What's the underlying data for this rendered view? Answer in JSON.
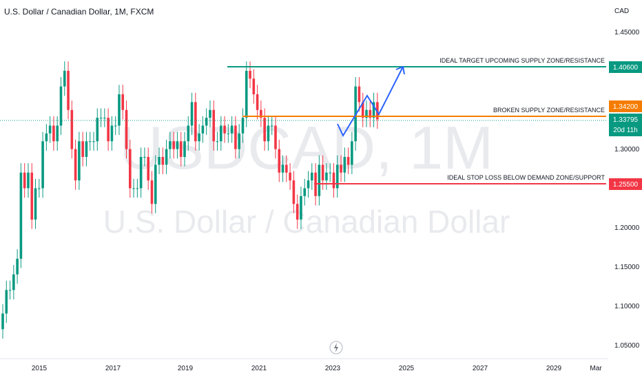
{
  "header": {
    "title": "U.S. Dollar / Canadian Dollar, 1M, FXCM"
  },
  "axis": {
    "currency": "CAD",
    "y_ticks": [
      "1.45000",
      "1.30000",
      "1.20000",
      "1.15000",
      "1.10000",
      "1.05000"
    ],
    "x_ticks": [
      "2015",
      "2017",
      "2019",
      "2021",
      "2023",
      "2025",
      "2027",
      "2029",
      "Mar"
    ]
  },
  "watermark": {
    "symbol": "USDCAD, 1M",
    "name": "U.S. Dollar / Canadian Dollar"
  },
  "annotations": {
    "target_label": "IDEAL TARGET UPCOMING SUPPLY ZONE/RESISTANCE",
    "target_price": "1.40600",
    "broken_label": "BROKEN SUPPLY ZONE/RESISTANCE",
    "broken_price": "1.34200",
    "current_price": "1.33795",
    "countdown": "20d 11h",
    "stop_label": "IDEAL STOP LOSS BELOW DEMAND ZONE/SUPPORT",
    "stop_price": "1.25500"
  },
  "colors": {
    "up": "#089981",
    "down": "#f23645",
    "target": "#089981",
    "broken": "#f57c00",
    "stop": "#f23645",
    "projection": "#2962ff",
    "current": "#089981"
  },
  "chart_data": {
    "type": "candlestick",
    "y_range": [
      1.03,
      1.48
    ],
    "series": [
      {
        "x": "2014-08",
        "c": 1.09
      },
      {
        "x": "2014-09",
        "c": 1.12
      },
      {
        "x": "2014-10",
        "c": 1.12
      },
      {
        "x": "2014-11",
        "c": 1.14
      },
      {
        "x": "2014-12",
        "c": 1.16
      },
      {
        "x": "2015-01",
        "c": 1.27
      },
      {
        "x": "2015-02",
        "c": 1.25
      },
      {
        "x": "2015-03",
        "c": 1.27
      },
      {
        "x": "2015-04",
        "c": 1.21
      },
      {
        "x": "2015-05",
        "c": 1.25
      },
      {
        "x": "2015-06",
        "c": 1.25
      },
      {
        "x": "2015-07",
        "c": 1.31
      },
      {
        "x": "2015-08",
        "c": 1.32
      },
      {
        "x": "2015-09",
        "c": 1.33
      },
      {
        "x": "2015-10",
        "c": 1.31
      },
      {
        "x": "2015-11",
        "c": 1.33
      },
      {
        "x": "2015-12",
        "c": 1.38
      },
      {
        "x": "2016-01",
        "c": 1.4
      },
      {
        "x": "2016-02",
        "c": 1.35
      },
      {
        "x": "2016-03",
        "c": 1.3
      },
      {
        "x": "2016-04",
        "c": 1.26
      },
      {
        "x": "2016-05",
        "c": 1.31
      },
      {
        "x": "2016-06",
        "c": 1.29
      },
      {
        "x": "2016-07",
        "c": 1.31
      },
      {
        "x": "2016-08",
        "c": 1.31
      },
      {
        "x": "2016-09",
        "c": 1.31
      },
      {
        "x": "2016-10",
        "c": 1.34
      },
      {
        "x": "2016-11",
        "c": 1.34
      },
      {
        "x": "2016-12",
        "c": 1.34
      },
      {
        "x": "2017-01",
        "c": 1.31
      },
      {
        "x": "2017-02",
        "c": 1.33
      },
      {
        "x": "2017-03",
        "c": 1.33
      },
      {
        "x": "2017-04",
        "c": 1.37
      },
      {
        "x": "2017-05",
        "c": 1.35
      },
      {
        "x": "2017-06",
        "c": 1.3
      },
      {
        "x": "2017-07",
        "c": 1.25
      },
      {
        "x": "2017-08",
        "c": 1.25
      },
      {
        "x": "2017-09",
        "c": 1.25
      },
      {
        "x": "2017-10",
        "c": 1.29
      },
      {
        "x": "2017-11",
        "c": 1.29
      },
      {
        "x": "2017-12",
        "c": 1.26
      },
      {
        "x": "2018-01",
        "c": 1.23
      },
      {
        "x": "2018-02",
        "c": 1.28
      },
      {
        "x": "2018-03",
        "c": 1.29
      },
      {
        "x": "2018-04",
        "c": 1.28
      },
      {
        "x": "2018-05",
        "c": 1.3
      },
      {
        "x": "2018-06",
        "c": 1.31
      },
      {
        "x": "2018-07",
        "c": 1.3
      },
      {
        "x": "2018-08",
        "c": 1.31
      },
      {
        "x": "2018-09",
        "c": 1.29
      },
      {
        "x": "2018-10",
        "c": 1.31
      },
      {
        "x": "2018-11",
        "c": 1.33
      },
      {
        "x": "2018-12",
        "c": 1.36
      },
      {
        "x": "2019-01",
        "c": 1.31
      },
      {
        "x": "2019-02",
        "c": 1.32
      },
      {
        "x": "2019-03",
        "c": 1.33
      },
      {
        "x": "2019-04",
        "c": 1.34
      },
      {
        "x": "2019-05",
        "c": 1.35
      },
      {
        "x": "2019-06",
        "c": 1.31
      },
      {
        "x": "2019-07",
        "c": 1.31
      },
      {
        "x": "2019-08",
        "c": 1.33
      },
      {
        "x": "2019-09",
        "c": 1.32
      },
      {
        "x": "2019-10",
        "c": 1.32
      },
      {
        "x": "2019-11",
        "c": 1.33
      },
      {
        "x": "2019-12",
        "c": 1.3
      },
      {
        "x": "2020-01",
        "c": 1.32
      },
      {
        "x": "2020-02",
        "c": 1.34
      },
      {
        "x": "2020-03",
        "c": 1.4
      },
      {
        "x": "2020-04",
        "c": 1.39
      },
      {
        "x": "2020-05",
        "c": 1.37
      },
      {
        "x": "2020-06",
        "c": 1.35
      },
      {
        "x": "2020-07",
        "c": 1.34
      },
      {
        "x": "2020-08",
        "c": 1.31
      },
      {
        "x": "2020-09",
        "c": 1.33
      },
      {
        "x": "2020-10",
        "c": 1.33
      },
      {
        "x": "2020-11",
        "c": 1.3
      },
      {
        "x": "2020-12",
        "c": 1.27
      },
      {
        "x": "2021-01",
        "c": 1.28
      },
      {
        "x": "2021-02",
        "c": 1.27
      },
      {
        "x": "2021-03",
        "c": 1.26
      },
      {
        "x": "2021-04",
        "c": 1.23
      },
      {
        "x": "2021-05",
        "c": 1.21
      },
      {
        "x": "2021-06",
        "c": 1.24
      },
      {
        "x": "2021-07",
        "c": 1.25
      },
      {
        "x": "2021-08",
        "c": 1.26
      },
      {
        "x": "2021-09",
        "c": 1.27
      },
      {
        "x": "2021-10",
        "c": 1.24
      },
      {
        "x": "2021-11",
        "c": 1.28
      },
      {
        "x": "2021-12",
        "c": 1.26
      },
      {
        "x": "2022-01",
        "c": 1.27
      },
      {
        "x": "2022-02",
        "c": 1.27
      },
      {
        "x": "2022-03",
        "c": 1.25
      },
      {
        "x": "2022-04",
        "c": 1.28
      },
      {
        "x": "2022-05",
        "c": 1.27
      },
      {
        "x": "2022-06",
        "c": 1.29
      },
      {
        "x": "2022-07",
        "c": 1.28
      },
      {
        "x": "2022-08",
        "c": 1.31
      },
      {
        "x": "2022-09",
        "c": 1.38
      },
      {
        "x": "2022-10",
        "c": 1.36
      },
      {
        "x": "2022-11",
        "c": 1.34
      },
      {
        "x": "2022-12",
        "c": 1.35
      },
      {
        "x": "2023-01",
        "c": 1.34
      },
      {
        "x": "2023-02",
        "c": 1.36
      },
      {
        "x": "2023-03",
        "c": 1.33795
      }
    ]
  }
}
